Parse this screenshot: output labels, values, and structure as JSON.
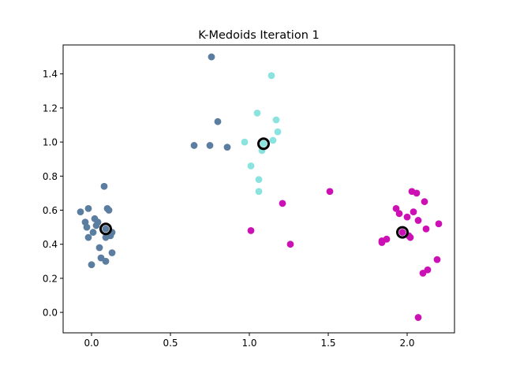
{
  "chart_data": {
    "type": "scatter",
    "title": "K-Medoids Iteration 1",
    "xlabel": "",
    "ylabel": "",
    "xlim": [
      -0.18,
      2.3
    ],
    "ylim": [
      -0.12,
      1.57
    ],
    "xticks": [
      0.0,
      0.5,
      1.0,
      1.5,
      2.0
    ],
    "yticks": [
      0.0,
      0.2,
      0.4,
      0.6,
      0.8,
      1.0,
      1.2,
      1.4
    ],
    "xtick_labels": [
      "0.0",
      "0.5",
      "1.0",
      "1.5",
      "2.0"
    ],
    "ytick_labels": [
      "0.0",
      "0.2",
      "0.4",
      "0.6",
      "0.8",
      "1.0",
      "1.2",
      "1.4"
    ],
    "grid": false,
    "legend": "none",
    "series": [
      {
        "color": "#5b7d9f",
        "points": [
          [
            -0.07,
            0.59
          ],
          [
            -0.04,
            0.53
          ],
          [
            -0.03,
            0.5
          ],
          [
            -0.02,
            0.61
          ],
          [
            -0.02,
            0.44
          ],
          [
            0.01,
            0.47
          ],
          [
            0.02,
            0.55
          ],
          [
            0.03,
            0.51
          ],
          [
            0.04,
            0.53
          ],
          [
            0.0,
            0.28
          ],
          [
            0.05,
            0.38
          ],
          [
            0.06,
            0.32
          ],
          [
            0.08,
            0.74
          ],
          [
            0.09,
            0.44
          ],
          [
            0.09,
            0.3
          ],
          [
            0.1,
            0.61
          ],
          [
            0.11,
            0.6
          ],
          [
            0.12,
            0.45
          ],
          [
            0.13,
            0.47
          ],
          [
            0.13,
            0.35
          ],
          [
            0.09,
            0.49
          ],
          [
            0.65,
            0.98
          ],
          [
            0.75,
            0.98
          ],
          [
            0.76,
            1.5
          ],
          [
            0.8,
            1.12
          ],
          [
            0.86,
            0.97
          ]
        ]
      },
      {
        "color": "#8ae3de",
        "points": [
          [
            0.97,
            1.0
          ],
          [
            1.01,
            0.86
          ],
          [
            1.05,
            1.17
          ],
          [
            1.06,
            0.78
          ],
          [
            1.06,
            0.71
          ],
          [
            1.08,
            0.95
          ],
          [
            1.09,
            0.99
          ],
          [
            1.14,
            1.39
          ],
          [
            1.15,
            1.01
          ],
          [
            1.17,
            1.13
          ],
          [
            1.18,
            1.06
          ]
        ]
      },
      {
        "color": "#cc11b4",
        "points": [
          [
            1.01,
            0.48
          ],
          [
            1.21,
            0.64
          ],
          [
            1.26,
            0.4
          ],
          [
            1.51,
            0.71
          ],
          [
            1.84,
            0.42
          ],
          [
            1.84,
            0.41
          ],
          [
            1.87,
            0.43
          ],
          [
            1.93,
            0.61
          ],
          [
            1.95,
            0.58
          ],
          [
            1.97,
            0.47
          ],
          [
            2.0,
            0.56
          ],
          [
            2.01,
            0.45
          ],
          [
            2.02,
            0.44
          ],
          [
            2.03,
            0.71
          ],
          [
            2.04,
            0.59
          ],
          [
            2.06,
            0.7
          ],
          [
            2.07,
            0.54
          ],
          [
            2.07,
            -0.03
          ],
          [
            2.1,
            0.23
          ],
          [
            2.11,
            0.65
          ],
          [
            2.12,
            0.49
          ],
          [
            2.13,
            0.25
          ],
          [
            2.19,
            0.31
          ],
          [
            2.2,
            0.52
          ]
        ]
      }
    ],
    "medoids": [
      [
        0.09,
        0.49
      ],
      [
        1.09,
        0.99
      ],
      [
        1.97,
        0.47
      ]
    ]
  }
}
